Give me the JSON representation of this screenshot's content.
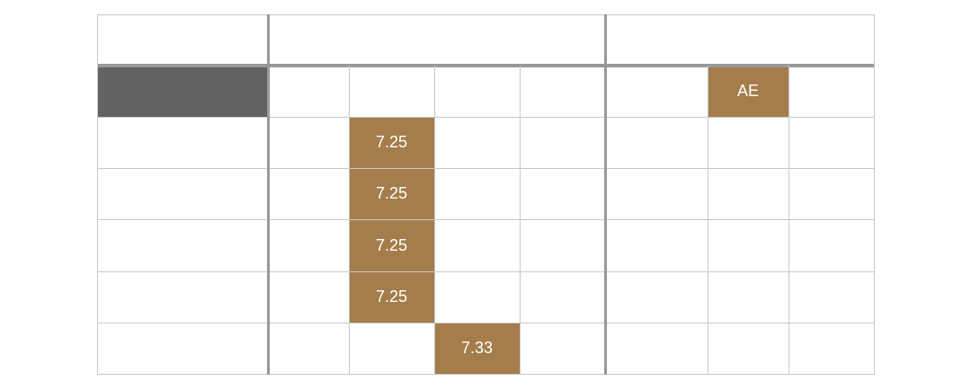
{
  "colors": {
    "line": "#c8c8c8",
    "thick_line": "#999999",
    "highlight": "#a47d4b",
    "dark_cell": "#626262",
    "text_on_highlight": "#ffffff"
  },
  "table": {
    "column_count": 8,
    "row_count": 7,
    "header_groups": [
      {
        "label": "",
        "first_column": 0,
        "span": 1
      },
      {
        "label": "",
        "first_column": 1,
        "span": 4
      },
      {
        "label": "",
        "first_column": 5,
        "span": 3
      }
    ],
    "highlighted_cells": [
      {
        "row": 1,
        "col": 0,
        "text": "",
        "style": "dark"
      },
      {
        "row": 1,
        "col": 6,
        "text": "AE",
        "style": "highlight"
      },
      {
        "row": 2,
        "col": 2,
        "text": "7.25",
        "style": "highlight"
      },
      {
        "row": 3,
        "col": 2,
        "text": "7.25",
        "style": "highlight"
      },
      {
        "row": 4,
        "col": 2,
        "text": "7.25",
        "style": "highlight"
      },
      {
        "row": 5,
        "col": 2,
        "text": "7.25",
        "style": "highlight"
      },
      {
        "row": 6,
        "col": 3,
        "text": "7.33",
        "style": "highlight"
      }
    ]
  }
}
